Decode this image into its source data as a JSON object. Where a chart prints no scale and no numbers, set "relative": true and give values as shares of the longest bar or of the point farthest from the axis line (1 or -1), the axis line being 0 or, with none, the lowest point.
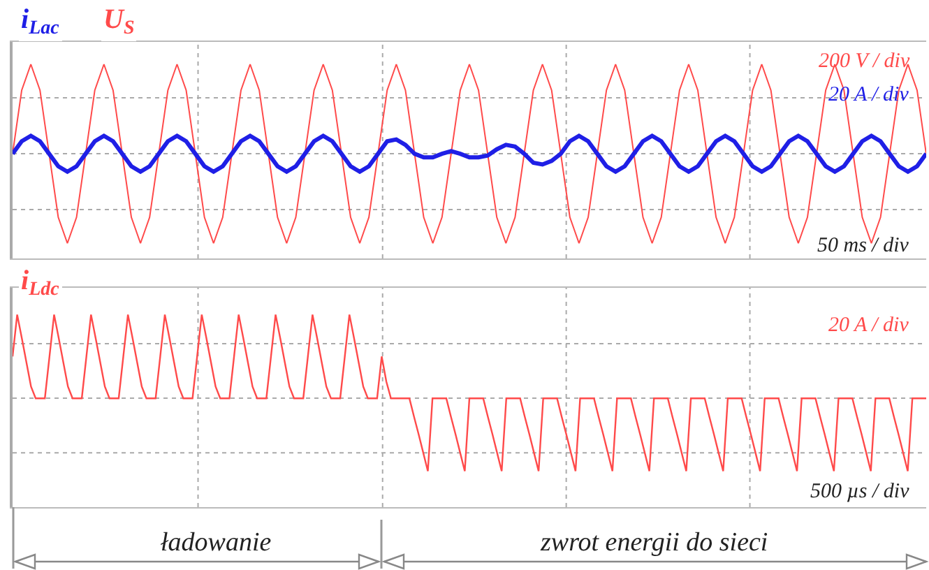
{
  "chart_data": [
    {
      "type": "line",
      "relative": true,
      "grid": true,
      "categories": [
        null,
        null,
        null,
        null,
        null,
        null,
        null,
        null,
        null,
        null,
        null,
        null,
        null,
        null,
        null,
        null,
        null,
        null,
        null,
        null,
        null,
        null,
        null,
        null,
        null,
        null,
        null,
        null,
        null,
        null,
        null,
        null,
        null,
        null,
        null,
        null,
        null,
        null,
        null,
        null,
        null,
        null,
        null,
        null,
        null,
        null,
        null,
        null,
        null,
        null,
        null,
        null,
        null,
        null,
        null,
        null,
        null,
        null,
        null,
        null,
        null,
        null,
        null,
        null,
        null,
        null,
        null,
        null,
        null,
        null,
        null,
        null,
        null,
        null,
        null,
        null,
        null,
        null,
        null,
        null,
        null,
        null,
        null,
        null,
        null,
        null,
        null,
        null,
        null,
        null,
        null,
        null,
        null,
        null,
        null,
        null,
        null,
        null,
        null,
        null,
        null
      ],
      "series": [
        {
          "name": "U$_{S}$",
          "color": "#ff4a4a",
          "values": [
            0,
            0.71,
            1,
            0.71,
            0,
            -0.71,
            -1,
            -0.71,
            0,
            0.71,
            1,
            0.71,
            0,
            -0.71,
            -1,
            -0.71,
            0,
            0.71,
            1,
            0.71,
            0,
            -0.71,
            -1,
            -0.71,
            0,
            0.71,
            1,
            0.71,
            0,
            -0.71,
            -1,
            -0.71,
            0,
            0.71,
            1,
            0.71,
            0,
            -0.71,
            -1,
            -0.71,
            0,
            0.71,
            1,
            0.71,
            0,
            -0.71,
            -1,
            -0.71,
            0,
            0.71,
            1,
            0.71,
            0,
            -0.71,
            -1,
            -0.71,
            0,
            0.71,
            1,
            0.71,
            0,
            -0.71,
            -1,
            -0.71,
            0,
            0.71,
            1,
            0.71,
            0,
            -0.71,
            -1,
            -0.71,
            0,
            0.71,
            1,
            0.71,
            0,
            -0.71,
            -1,
            -0.71,
            0,
            0.71,
            1,
            0.71,
            0,
            -0.71,
            -1,
            -0.71,
            0,
            0.71,
            1,
            0.71,
            0,
            -0.71,
            -1,
            -0.71,
            0,
            0.71,
            1,
            0.71,
            0
          ]
        },
        {
          "name": "i$_{Lac}$",
          "color": "#1f1fe6",
          "values": [
            0,
            0.14,
            0.2,
            0.14,
            0,
            -0.14,
            -0.2,
            -0.14,
            0,
            0.14,
            0.2,
            0.14,
            0,
            -0.14,
            -0.2,
            -0.14,
            0,
            0.14,
            0.2,
            0.14,
            0,
            -0.14,
            -0.2,
            -0.14,
            0,
            0.14,
            0.2,
            0.14,
            0,
            -0.14,
            -0.2,
            -0.14,
            0,
            0.14,
            0.2,
            0.14,
            0,
            -0.14,
            -0.2,
            -0.14,
            0,
            0.14,
            0.16,
            0.1,
            0,
            -0.04,
            -0.04,
            0,
            0.03,
            0,
            -0.04,
            -0.04,
            -0.02,
            0.05,
            0.1,
            0.08,
            0,
            -0.1,
            -0.12,
            -0.08,
            0,
            0.14,
            0.2,
            0.14,
            0,
            -0.14,
            -0.2,
            -0.14,
            0,
            0.14,
            0.2,
            0.14,
            0,
            -0.14,
            -0.2,
            -0.14,
            0,
            0.14,
            0.2,
            0.14,
            0,
            -0.14,
            -0.2,
            -0.14,
            0,
            0.14,
            0.2,
            0.14,
            0,
            -0.14,
            -0.2,
            -0.14,
            0,
            0.14,
            0.2,
            0.14,
            0,
            -0.14,
            -0.2,
            -0.14,
            0
          ]
        }
      ],
      "annotations": [
        "200 V / div",
        "20 A / div",
        "50 ms / div"
      ]
    },
    {
      "type": "line",
      "relative": true,
      "grid": true,
      "categories": [
        null,
        null,
        null,
        null,
        null,
        null,
        null,
        null,
        null,
        null,
        null,
        null,
        null,
        null,
        null,
        null,
        null,
        null,
        null,
        null,
        null,
        null,
        null,
        null,
        null,
        null,
        null,
        null,
        null,
        null,
        null,
        null,
        null,
        null,
        null,
        null,
        null,
        null,
        null,
        null,
        null,
        null,
        null,
        null,
        null,
        null,
        null,
        null,
        null,
        null,
        null,
        null,
        null,
        null,
        null,
        null,
        null,
        null,
        null,
        null,
        null,
        null,
        null,
        null,
        null,
        null,
        null,
        null,
        null,
        null,
        null,
        null,
        null,
        null,
        null,
        null,
        null,
        null,
        null,
        null,
        null,
        null,
        null,
        null,
        null,
        null,
        null,
        null,
        null,
        null,
        null,
        null,
        null,
        null,
        null,
        null,
        null,
        null,
        null,
        null,
        null,
        null,
        null,
        null,
        null,
        null,
        null,
        null,
        null,
        null,
        null,
        null,
        null,
        null,
        null,
        null,
        null,
        null,
        null,
        null,
        null,
        null,
        null,
        null,
        null,
        null,
        null,
        null,
        null,
        null,
        null,
        null,
        null,
        null,
        null,
        null,
        null,
        null,
        null,
        null,
        null,
        null,
        null,
        null,
        null,
        null,
        null,
        null,
        null,
        null,
        null,
        null,
        null,
        null,
        null,
        null,
        null,
        null,
        null,
        null,
        null,
        null,
        null,
        null,
        null,
        null,
        null,
        null,
        null,
        null,
        null,
        null,
        null,
        null,
        null,
        null,
        null,
        null,
        null,
        null,
        null,
        null,
        null,
        null,
        null,
        null,
        null,
        null,
        null,
        null,
        null,
        null,
        null,
        null,
        null,
        null,
        null,
        null,
        null
      ],
      "series": [
        {
          "name": "i$_{Ldc}$",
          "color": "#ff4a4a",
          "values": [
            0.5,
            1,
            0.72,
            0.43,
            0.14,
            0,
            0,
            0,
            0.5,
            1,
            0.72,
            0.43,
            0.14,
            0,
            0,
            0,
            0.5,
            1,
            0.72,
            0.43,
            0.14,
            0,
            0,
            0,
            0.5,
            1,
            0.72,
            0.43,
            0.14,
            0,
            0,
            0,
            0.5,
            1,
            0.72,
            0.43,
            0.14,
            0,
            0,
            0,
            0.5,
            1,
            0.72,
            0.43,
            0.14,
            0,
            0,
            0,
            0.5,
            1,
            0.72,
            0.43,
            0.14,
            0,
            0,
            0,
            0.5,
            1,
            0.72,
            0.43,
            0.14,
            0,
            0,
            0,
            0.5,
            1,
            0.72,
            0.43,
            0.14,
            0,
            0,
            0,
            0.5,
            1,
            0.72,
            0.43,
            0.14,
            0,
            0,
            0,
            0.5,
            0.2,
            0,
            0,
            0,
            0,
            0,
            -0.22,
            -0.43,
            -0.65,
            -0.87,
            0,
            0,
            0,
            0,
            -0.22,
            -0.43,
            -0.65,
            -0.87,
            0,
            0,
            0,
            0,
            -0.22,
            -0.43,
            -0.65,
            -0.87,
            0,
            0,
            0,
            0,
            -0.22,
            -0.43,
            -0.65,
            -0.87,
            0,
            0,
            0,
            0,
            -0.22,
            -0.43,
            -0.65,
            -0.87,
            0,
            0,
            0,
            0,
            -0.22,
            -0.43,
            -0.65,
            -0.87,
            0,
            0,
            0,
            0,
            -0.22,
            -0.43,
            -0.65,
            -0.87,
            0,
            0,
            0,
            0,
            -0.22,
            -0.43,
            -0.65,
            -0.87,
            0,
            0,
            0,
            0,
            -0.22,
            -0.43,
            -0.65,
            -0.87,
            0,
            0,
            0,
            0,
            -0.22,
            -0.43,
            -0.65,
            -0.87,
            0,
            0,
            0,
            0,
            -0.22,
            -0.43,
            -0.65,
            -0.87,
            0,
            0,
            0,
            0,
            -0.22,
            -0.43,
            -0.65,
            -0.87,
            0,
            0,
            0,
            0,
            -0.22,
            -0.43,
            -0.65,
            -0.87,
            0,
            0,
            0,
            0,
            -0.22,
            -0.43,
            -0.65,
            -0.87,
            0,
            0,
            0,
            0
          ]
        }
      ],
      "annotations": [
        "20 A / div",
        "500 µs / div",
        "ładowanie",
        "zwrot energii do sieci"
      ]
    }
  ]
}
